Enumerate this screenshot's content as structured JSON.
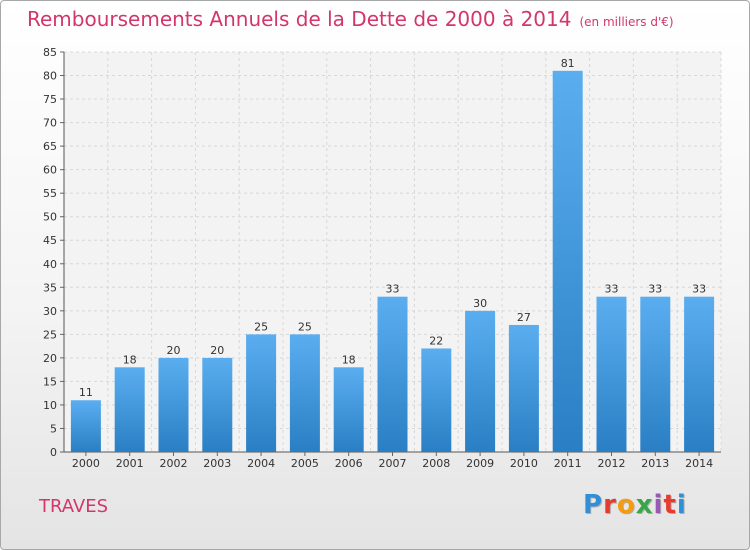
{
  "header": {
    "title": "Remboursements Annuels de la Dette de 2000 à 2014",
    "unit": "(en milliers d'€)"
  },
  "footer": {
    "city": "TRAVES",
    "logo_text": "Proxiti",
    "logo_colors": [
      "#2f8fd8",
      "#e63b2e",
      "#f39c12",
      "#3aa64a",
      "#9b59b6",
      "#e63b2e",
      "#2f8fd8"
    ]
  },
  "chart_data": {
    "type": "bar",
    "title": "Remboursements Annuels de la Dette de 2000 à 2014",
    "categories": [
      "2000",
      "2001",
      "2002",
      "2003",
      "2004",
      "2005",
      "2006",
      "2007",
      "2008",
      "2009",
      "2010",
      "2011",
      "2012",
      "2013",
      "2014"
    ],
    "values": [
      11,
      18,
      20,
      20,
      25,
      25,
      18,
      33,
      22,
      30,
      27,
      81,
      33,
      33,
      33
    ],
    "ylim": [
      0,
      85
    ],
    "yticks": [
      0,
      5,
      10,
      15,
      20,
      25,
      30,
      35,
      40,
      45,
      50,
      55,
      60,
      65,
      70,
      75,
      80,
      85
    ],
    "grid": true,
    "bar_color": "#3d94d8",
    "xlabel": "",
    "ylabel": ""
  }
}
